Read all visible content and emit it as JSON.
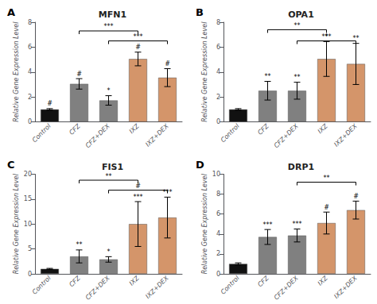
{
  "chart_data": [
    {
      "type": "bar",
      "label": "A",
      "title": "MFN1",
      "ylabel": "Relative Gene Expression Level",
      "categories": [
        "Control",
        "CFZ",
        "CFZ+DEX",
        "IXZ",
        "IXZ+DEX"
      ],
      "values": [
        1.0,
        3.05,
        1.72,
        5.05,
        3.55
      ],
      "errors": [
        0.06,
        0.42,
        0.38,
        0.55,
        0.72
      ],
      "colors": [
        "#111111",
        "#808080",
        "#808080",
        "#d4956a",
        "#d4956a"
      ],
      "sig_above": [
        "#",
        "#",
        "*",
        "#",
        "#"
      ],
      "brackets": [
        {
          "from": "CFZ",
          "to": "IXZ",
          "y": 7.3,
          "text": "***"
        },
        {
          "from": "CFZ+DEX",
          "to": "IXZ+DEX",
          "y": 6.5,
          "text": "***"
        }
      ],
      "ylim": [
        0,
        8
      ],
      "yticks": [
        0,
        2,
        4,
        6,
        8
      ],
      "grid": false
    },
    {
      "type": "bar",
      "label": "B",
      "title": "OPA1",
      "ylabel": "Relative Gene Expression Level",
      "categories": [
        "Control",
        "CFZ",
        "CFZ+DEX",
        "IXZ",
        "IXZ+DEX"
      ],
      "values": [
        1.0,
        2.5,
        2.5,
        5.05,
        4.65
      ],
      "errors": [
        0.06,
        0.75,
        0.68,
        1.4,
        1.65
      ],
      "colors": [
        "#111111",
        "#808080",
        "#808080",
        "#d4956a",
        "#d4956a"
      ],
      "sig_above": [
        null,
        "**",
        "**",
        "***",
        "**"
      ],
      "brackets": [
        {
          "from": "CFZ",
          "to": "IXZ",
          "y": 7.4,
          "text": "**"
        },
        {
          "from": "CFZ+DEX",
          "to": "IXZ+DEX",
          "y": 6.5,
          "text": "*"
        }
      ],
      "ylim": [
        0,
        8
      ],
      "yticks": [
        0,
        2,
        4,
        6,
        8
      ],
      "grid": false
    },
    {
      "type": "bar",
      "label": "C",
      "title": "FIS1",
      "ylabel": "Relative Gene Expression Level",
      "categories": [
        "Control",
        "CFZ",
        "CFZ+DEX",
        "IXZ",
        "IXZ+DEX"
      ],
      "values": [
        1.0,
        3.5,
        2.9,
        10.0,
        11.3
      ],
      "errors": [
        0.1,
        1.3,
        0.55,
        4.5,
        4.1
      ],
      "colors": [
        "#111111",
        "#808080",
        "#808080",
        "#d4956a",
        "#d4956a"
      ],
      "sig_above": [
        null,
        "**",
        "*",
        "***",
        "***"
      ],
      "brackets": [
        {
          "from": "CFZ",
          "to": "IXZ",
          "y": 18.8,
          "text": "**"
        },
        {
          "from": "CFZ+DEX",
          "to": "IXZ+DEX",
          "y": 16.8,
          "text": "#"
        }
      ],
      "ylim": [
        0,
        20
      ],
      "yticks": [
        0,
        5,
        10,
        15,
        20
      ],
      "grid": false
    },
    {
      "type": "bar",
      "label": "D",
      "title": "DRP1",
      "ylabel": "Relative Gene Expression Level",
      "categories": [
        "Control",
        "CFZ",
        "CFZ+DEX",
        "IXZ",
        "IXZ+DEX"
      ],
      "values": [
        1.0,
        3.7,
        3.85,
        5.1,
        6.4
      ],
      "errors": [
        0.1,
        0.75,
        0.65,
        1.1,
        0.9
      ],
      "colors": [
        "#111111",
        "#808080",
        "#808080",
        "#d4956a",
        "#d4956a"
      ],
      "sig_above": [
        null,
        "***",
        "***",
        "#",
        "#"
      ],
      "brackets": [
        {
          "from": "CFZ+DEX",
          "to": "IXZ+DEX",
          "y": 9.2,
          "text": "**"
        }
      ],
      "ylim": [
        0,
        10
      ],
      "yticks": [
        0,
        2,
        4,
        6,
        8,
        10
      ],
      "grid": false
    }
  ]
}
